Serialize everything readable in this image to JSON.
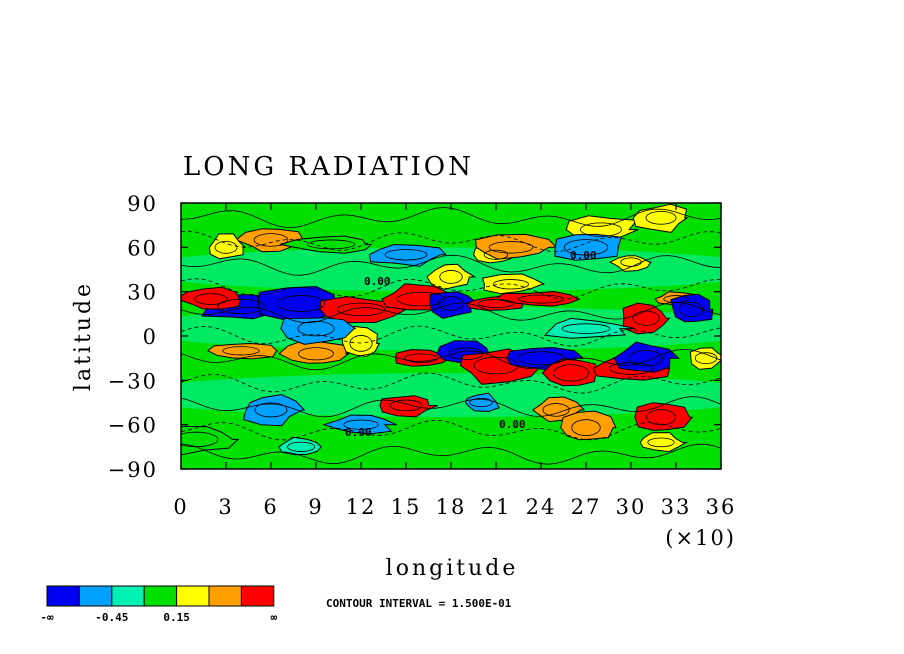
{
  "chart_data": {
    "type": "heatmap",
    "title": "LONG RADIATION",
    "xlabel": "longitude",
    "ylabel": "latitude",
    "x_scale_label": "(×10)",
    "xlim": [
      0,
      36
    ],
    "ylim": [
      -90,
      90
    ],
    "x_ticks": [
      "0",
      "3",
      "6",
      "9",
      "12",
      "15",
      "18",
      "21",
      "24",
      "27",
      "30",
      "33",
      "36"
    ],
    "y_ticks": [
      "90",
      "60",
      "30",
      "0",
      "−30",
      "−60",
      "−90"
    ],
    "contour_interval_text": "CONTOUR INTERVAL = 1.500E-01",
    "contour_labels": [
      "0.00",
      "0.00",
      "0.00",
      "0.00"
    ],
    "legend": {
      "colors": [
        "#0000f0",
        "#00a0ff",
        "#00f0b4",
        "#00e000",
        "#ffff00",
        "#ffa000",
        "#ff0000"
      ],
      "labels": [
        "-∞",
        "-0.45",
        "0.15",
        "∞"
      ]
    },
    "field_levels": {
      "description_of_scale": "levels 0..6 correspond to legend colour bins",
      "features": [
        {
          "lon": 6,
          "lat": 65,
          "level": 5
        },
        {
          "lon": 3,
          "lat": 60,
          "level": 4
        },
        {
          "lon": 10,
          "lat": 62,
          "level": 3
        },
        {
          "lon": 15,
          "lat": 55,
          "level": 1
        },
        {
          "lon": 21,
          "lat": 55,
          "level": 4
        },
        {
          "lon": 22,
          "lat": 60,
          "level": 5
        },
        {
          "lon": 28,
          "lat": 72,
          "level": 4
        },
        {
          "lon": 32,
          "lat": 80,
          "level": 4
        },
        {
          "lon": 30,
          "lat": 50,
          "level": 4
        },
        {
          "lon": 27,
          "lat": 60,
          "level": 1
        },
        {
          "lon": 33,
          "lat": 25,
          "level": 5
        },
        {
          "lon": 4,
          "lat": 20,
          "level": 0
        },
        {
          "lon": 2,
          "lat": 25,
          "level": 6
        },
        {
          "lon": 8,
          "lat": 22,
          "level": 0
        },
        {
          "lon": 12,
          "lat": 18,
          "level": 6
        },
        {
          "lon": 16,
          "lat": 25,
          "level": 6
        },
        {
          "lon": 18,
          "lat": 22,
          "level": 0
        },
        {
          "lon": 21,
          "lat": 22,
          "level": 6
        },
        {
          "lon": 24,
          "lat": 25,
          "level": 6
        },
        {
          "lon": 31,
          "lat": 12,
          "level": 6
        },
        {
          "lon": 34,
          "lat": 18,
          "level": 0
        },
        {
          "lon": 4,
          "lat": -10,
          "level": 5
        },
        {
          "lon": 9,
          "lat": -12,
          "level": 5
        },
        {
          "lon": 12,
          "lat": -5,
          "level": 4
        },
        {
          "lon": 16,
          "lat": -15,
          "level": 6
        },
        {
          "lon": 19,
          "lat": -12,
          "level": 0
        },
        {
          "lon": 21,
          "lat": -20,
          "level": 6
        },
        {
          "lon": 24,
          "lat": -15,
          "level": 0
        },
        {
          "lon": 26,
          "lat": -25,
          "level": 6
        },
        {
          "lon": 30,
          "lat": -22,
          "level": 6
        },
        {
          "lon": 31,
          "lat": -15,
          "level": 0
        },
        {
          "lon": 35,
          "lat": -15,
          "level": 4
        },
        {
          "lon": 6,
          "lat": -50,
          "level": 1
        },
        {
          "lon": 15,
          "lat": -47,
          "level": 6
        },
        {
          "lon": 12,
          "lat": -60,
          "level": 1
        },
        {
          "lon": 20,
          "lat": -45,
          "level": 1
        },
        {
          "lon": 25,
          "lat": -50,
          "level": 5
        },
        {
          "lon": 27,
          "lat": -62,
          "level": 5
        },
        {
          "lon": 32,
          "lat": -72,
          "level": 4
        },
        {
          "lon": 32,
          "lat": -55,
          "level": 6
        },
        {
          "lon": 1,
          "lat": -70,
          "level": 3
        },
        {
          "lon": 8,
          "lat": -75,
          "level": 2
        },
        {
          "lon": 18,
          "lat": 40,
          "level": 4
        },
        {
          "lon": 22,
          "lat": 35,
          "level": 4
        },
        {
          "lon": 9,
          "lat": 5,
          "level": 1
        },
        {
          "lon": 27,
          "lat": 5,
          "level": 2
        }
      ]
    }
  }
}
